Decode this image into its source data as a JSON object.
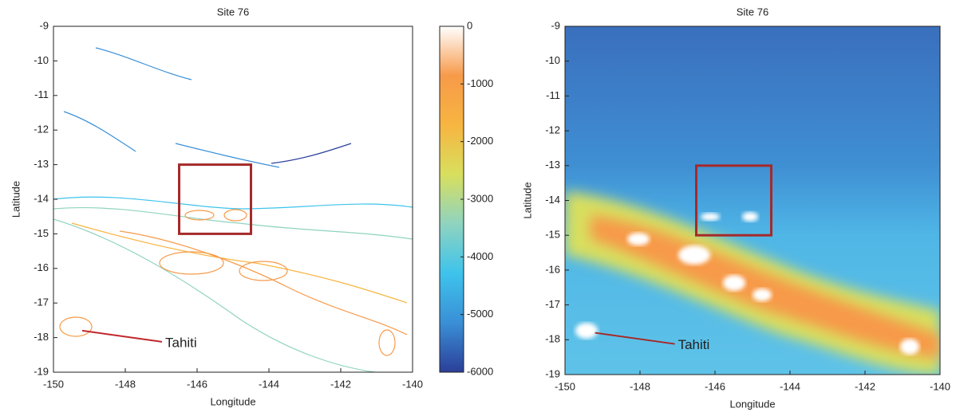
{
  "chart_data": [
    {
      "type": "contour",
      "title": "Site 76",
      "xlabel": "Longitude",
      "ylabel": "Latitude",
      "xlim": [
        -150,
        -140
      ],
      "ylim": [
        -19,
        -9
      ],
      "xticks": [
        -150,
        -148,
        -146,
        -144,
        -142,
        -140
      ],
      "yticks": [
        -19,
        -18,
        -17,
        -16,
        -15,
        -14,
        -13,
        -12,
        -11,
        -10,
        -9
      ],
      "highlight": {
        "x": [
          -146.5,
          -144.5
        ],
        "y": [
          -15,
          -13
        ],
        "color": "#a52a2a"
      },
      "annotation": {
        "text": "Tahiti",
        "x": -149.2,
        "y": -17.8,
        "color": "#c0272d"
      },
      "colorbar": {
        "lim": [
          -6000,
          0
        ],
        "ticks": [
          -6000,
          -5000,
          -4000,
          -3000,
          -2000,
          -1000,
          0
        ],
        "colors": [
          "#2b3f99",
          "#3a8fd6",
          "#3ec3ec",
          "#8fd3c0",
          "#d8df5e",
          "#f7b541",
          "#f79a4a",
          "#ffffff"
        ]
      }
    },
    {
      "type": "heatmap",
      "title": "Site 76",
      "xlabel": "Longitude",
      "ylabel": "Latitude",
      "xlim": [
        -150,
        -140
      ],
      "ylim": [
        -19,
        -9
      ],
      "xticks": [
        -150,
        -148,
        -146,
        -144,
        -142,
        -140
      ],
      "yticks": [
        -19,
        -18,
        -17,
        -16,
        -15,
        -14,
        -13,
        -12,
        -11,
        -10,
        -9
      ],
      "highlight": {
        "x": [
          -146.5,
          -144.5
        ],
        "y": [
          -15,
          -13
        ],
        "color": "#a52a2a"
      },
      "annotation": {
        "text": "Tahiti",
        "x": -149.2,
        "y": -17.8,
        "color": "#a52a2a"
      }
    }
  ]
}
